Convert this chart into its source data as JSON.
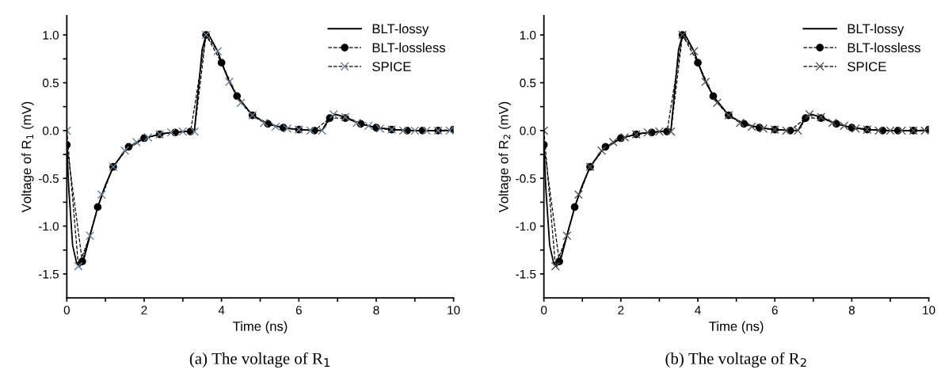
{
  "chart_data": [
    {
      "type": "line",
      "xlabel": "Time (ns)",
      "ylabel": "Voltage of R$_{1}$ (mV)",
      "annotations": [
        "(a) The voltage of R$_{1}$"
      ],
      "xlim": [
        0,
        10
      ],
      "ylim": [
        -1.75,
        1.2
      ],
      "xticks": [
        0,
        {
          "value": 1,
          "label": null
        },
        2,
        {
          "value": 3,
          "label": null
        },
        4,
        {
          "value": 5,
          "label": null
        },
        6,
        {
          "value": 7,
          "label": null
        },
        8,
        {
          "value": 9,
          "label": null
        },
        10
      ],
      "yticks": [
        {
          "value": -1.5,
          "label": "-1.5"
        },
        {
          "value": -1.25,
          "label": null
        },
        {
          "value": -1.0,
          "label": "-1.0"
        },
        {
          "value": -0.75,
          "label": null
        },
        {
          "value": -0.5,
          "label": "-0.5"
        },
        {
          "value": -0.25,
          "label": null
        },
        {
          "value": 0,
          "label": "0.0"
        },
        {
          "value": 0.25,
          "label": null
        },
        {
          "value": 0.5,
          "label": "0.5"
        },
        {
          "value": 0.75,
          "label": null
        },
        {
          "value": 1.0,
          "label": "1.0"
        }
      ],
      "legend": "top right",
      "grid": false,
      "series": [
        {
          "name": "BLT-lossy",
          "color": "#000000",
          "line_style": "solid",
          "marker": "none",
          "x": [
            0,
            0.05,
            0.15,
            0.25,
            0.33,
            0.45,
            0.6,
            0.8,
            1.0,
            1.2,
            1.5,
            2.0,
            2.5,
            3.0,
            3.3,
            3.5,
            3.6,
            3.7,
            3.9,
            4.0,
            4.2,
            4.4,
            4.8,
            5.2,
            5.6,
            6.0,
            6.6,
            6.8,
            6.95,
            7.2,
            7.6,
            8.0,
            8.5,
            9.0,
            10
          ],
          "values": [
            -0.15,
            -0.6,
            -1.2,
            -1.38,
            -1.42,
            -1.33,
            -1.1,
            -0.8,
            -0.57,
            -0.38,
            -0.21,
            -0.08,
            -0.03,
            -0.01,
            0.0,
            0.85,
            1.0,
            0.98,
            0.83,
            0.71,
            0.51,
            0.36,
            0.16,
            0.07,
            0.03,
            0.01,
            0.0,
            0.14,
            0.17,
            0.14,
            0.07,
            0.03,
            0.01,
            0.0,
            0.0
          ]
        },
        {
          "name": "BLT-lossless",
          "color": "#000000",
          "line_style": "dashed",
          "marker": "circle",
          "x": [
            0,
            0.4,
            0.8,
            1.2,
            1.6,
            2.0,
            2.4,
            2.8,
            3.2,
            3.6,
            4.0,
            4.4,
            4.8,
            5.2,
            5.6,
            6.0,
            6.4,
            6.8,
            7.2,
            7.6,
            8.0,
            8.4,
            8.8,
            9.2,
            9.6,
            10
          ],
          "values": [
            -0.15,
            -1.37,
            -0.8,
            -0.38,
            -0.17,
            -0.08,
            -0.04,
            -0.02,
            -0.01,
            1.0,
            0.71,
            0.36,
            0.16,
            0.07,
            0.03,
            0.01,
            0.0,
            0.13,
            0.13,
            0.07,
            0.03,
            0.01,
            0.0,
            0.0,
            0.0,
            0.01
          ]
        },
        {
          "name": "SPICE",
          "color": "#6e7f8f",
          "line_style": "dashed",
          "marker": "cross",
          "x": [
            0,
            0.3,
            0.6,
            0.9,
            1.2,
            1.5,
            1.8,
            2.1,
            2.4,
            2.7,
            3.0,
            3.3,
            3.6,
            3.9,
            4.2,
            4.5,
            4.8,
            5.1,
            5.4,
            5.7,
            6.0,
            6.3,
            6.6,
            6.9,
            7.2,
            7.5,
            7.8,
            8.1,
            8.4,
            8.7,
            9.0,
            9.3,
            9.6,
            9.9
          ],
          "values": [
            0.0,
            -1.42,
            -1.1,
            -0.67,
            -0.38,
            -0.21,
            -0.12,
            -0.07,
            -0.04,
            -0.02,
            -0.01,
            -0.01,
            1.0,
            0.83,
            0.51,
            0.29,
            0.16,
            0.08,
            0.04,
            0.02,
            0.01,
            0.0,
            0.0,
            0.17,
            0.14,
            0.08,
            0.05,
            0.02,
            0.01,
            0.0,
            0.0,
            0.0,
            0.0,
            0.0
          ]
        }
      ]
    },
    {
      "type": "line",
      "xlabel": "Time (ns)",
      "ylabel": "Voltage of R$_{2}$ (mV)",
      "annotations": [
        "(b) The voltage of R$_{2}$"
      ],
      "xlim": [
        0,
        10
      ],
      "ylim": [
        -1.75,
        1.2
      ],
      "xticks": [
        0,
        {
          "value": 1,
          "label": null
        },
        2,
        {
          "value": 3,
          "label": null
        },
        4,
        {
          "value": 5,
          "label": null
        },
        6,
        {
          "value": 7,
          "label": null
        },
        8,
        {
          "value": 9,
          "label": null
        },
        10
      ],
      "yticks": [
        {
          "value": -1.5,
          "label": "-1.5"
        },
        {
          "value": -1.25,
          "label": null
        },
        {
          "value": -1.0,
          "label": "-1.0"
        },
        {
          "value": -0.75,
          "label": null
        },
        {
          "value": -0.5,
          "label": "-0.5"
        },
        {
          "value": -0.25,
          "label": null
        },
        {
          "value": 0,
          "label": "0.0"
        },
        {
          "value": 0.25,
          "label": null
        },
        {
          "value": 0.5,
          "label": "0.5"
        },
        {
          "value": 0.75,
          "label": null
        },
        {
          "value": 1.0,
          "label": "1.0"
        }
      ],
      "legend": "top right",
      "grid": false,
      "series": [
        {
          "name": "BLT-lossy",
          "color": "#000000",
          "line_style": "solid",
          "marker": "none",
          "x": [
            0,
            0.05,
            0.15,
            0.25,
            0.33,
            0.45,
            0.6,
            0.8,
            1.0,
            1.2,
            1.5,
            2.0,
            2.5,
            3.0,
            3.3,
            3.5,
            3.6,
            3.7,
            3.9,
            4.0,
            4.2,
            4.4,
            4.8,
            5.2,
            5.6,
            6.0,
            6.6,
            6.8,
            6.95,
            7.2,
            7.6,
            8.0,
            8.5,
            9.0,
            10
          ],
          "values": [
            -0.15,
            -0.6,
            -1.2,
            -1.38,
            -1.42,
            -1.33,
            -1.1,
            -0.8,
            -0.57,
            -0.38,
            -0.21,
            -0.08,
            -0.03,
            -0.01,
            0.0,
            0.85,
            1.0,
            0.98,
            0.83,
            0.71,
            0.51,
            0.36,
            0.16,
            0.07,
            0.03,
            0.01,
            0.0,
            0.14,
            0.17,
            0.14,
            0.07,
            0.03,
            0.01,
            0.0,
            0.0
          ]
        },
        {
          "name": "BLT-lossless",
          "color": "#000000",
          "line_style": "dashed",
          "marker": "circle",
          "x": [
            0,
            0.4,
            0.8,
            1.2,
            1.6,
            2.0,
            2.4,
            2.8,
            3.2,
            3.6,
            4.0,
            4.4,
            4.8,
            5.2,
            5.6,
            6.0,
            6.4,
            6.8,
            7.2,
            7.6,
            8.0,
            8.4,
            8.8,
            9.2,
            9.6,
            10
          ],
          "values": [
            -0.15,
            -1.37,
            -0.8,
            -0.38,
            -0.17,
            -0.08,
            -0.04,
            -0.02,
            -0.01,
            1.0,
            0.71,
            0.36,
            0.16,
            0.07,
            0.03,
            0.01,
            0.0,
            0.13,
            0.13,
            0.07,
            0.03,
            0.01,
            0.0,
            0.0,
            0.0,
            0.01
          ]
        },
        {
          "name": "SPICE",
          "color": "#555555",
          "line_style": "dashed",
          "marker": "cross",
          "x": [
            0,
            0.3,
            0.6,
            0.9,
            1.2,
            1.5,
            1.8,
            2.1,
            2.4,
            2.7,
            3.0,
            3.3,
            3.6,
            3.9,
            4.2,
            4.5,
            4.8,
            5.1,
            5.4,
            5.7,
            6.0,
            6.3,
            6.6,
            6.9,
            7.2,
            7.5,
            7.8,
            8.1,
            8.4,
            8.7,
            9.0,
            9.3,
            9.6,
            9.9
          ],
          "values": [
            0.0,
            -1.42,
            -1.1,
            -0.67,
            -0.38,
            -0.21,
            -0.12,
            -0.07,
            -0.04,
            -0.02,
            -0.01,
            -0.01,
            1.0,
            0.83,
            0.51,
            0.29,
            0.16,
            0.08,
            0.04,
            0.02,
            0.01,
            0.0,
            0.0,
            0.17,
            0.14,
            0.08,
            0.05,
            0.02,
            0.01,
            0.0,
            0.0,
            0.0,
            0.0,
            0.0
          ]
        }
      ]
    }
  ]
}
